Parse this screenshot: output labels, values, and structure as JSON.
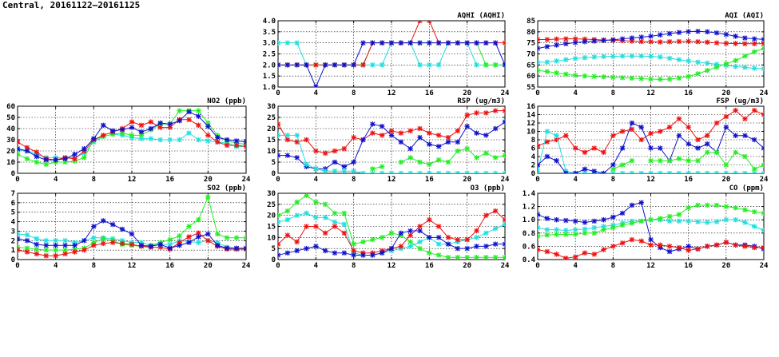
{
  "title": "Central, 20161122–20161125",
  "series_colors": {
    "red": "#ee1111",
    "blue": "#1111cc",
    "green": "#22ee22",
    "cyan": "#22dddd"
  },
  "chart_data": [
    {
      "id": "aqhi",
      "type": "line",
      "title": "AQHI (AQHI)",
      "xlim": [
        0,
        24
      ],
      "ylim": [
        1.0,
        4.0
      ],
      "xticks": [
        0,
        4,
        8,
        12,
        16,
        20,
        24
      ],
      "yticks": [
        "1.0",
        "1.5",
        "2.0",
        "2.5",
        "3.0",
        "3.5",
        "4.0"
      ],
      "grid": true,
      "series": [
        {
          "color": "cyan",
          "values": [
            3,
            3,
            3,
            2,
            2,
            2,
            2,
            2,
            2,
            2,
            2,
            2,
            3,
            3,
            3,
            2,
            2,
            2,
            3,
            3,
            3,
            2,
            2,
            2,
            2
          ]
        },
        {
          "color": "green",
          "values": [
            2,
            2,
            2,
            2,
            2,
            2,
            2,
            2,
            2,
            2,
            3,
            3,
            3,
            3,
            3,
            3,
            3,
            3,
            3,
            3,
            3,
            3,
            2,
            2,
            2
          ]
        },
        {
          "color": "red",
          "values": [
            2,
            2,
            2,
            2,
            2,
            2,
            2,
            2,
            2,
            2,
            3,
            3,
            3,
            3,
            3,
            4,
            4,
            3,
            3,
            3,
            3,
            3,
            3,
            3,
            3
          ]
        },
        {
          "color": "blue",
          "values": [
            2,
            2,
            2,
            2,
            1,
            2,
            2,
            2,
            2,
            3,
            3,
            3,
            3,
            3,
            3,
            3,
            3,
            3,
            3,
            3,
            3,
            3,
            3,
            3,
            2
          ]
        }
      ]
    },
    {
      "id": "aqi",
      "type": "line",
      "title": "AQI (AQI)",
      "xlim": [
        0,
        24
      ],
      "ylim": [
        55,
        85
      ],
      "xticks": [
        0,
        4,
        8,
        12,
        16,
        20,
        24
      ],
      "yticks": [
        "55",
        "60",
        "65",
        "70",
        "75",
        "80",
        "85"
      ],
      "grid": true,
      "series": [
        {
          "color": "red",
          "values": [
            76.5,
            76.5,
            76.7,
            76.8,
            76.8,
            76.7,
            76.5,
            76.3,
            76.2,
            76.0,
            75.8,
            75.6,
            75.5,
            75.4,
            75.5,
            75.6,
            75.7,
            75.5,
            75.3,
            75.0,
            74.8,
            74.7,
            74.6,
            74.6,
            74.6
          ]
        },
        {
          "color": "blue",
          "values": [
            72.5,
            73.3,
            74.0,
            74.6,
            75.1,
            75.5,
            75.8,
            76.1,
            76.4,
            76.8,
            77.2,
            77.6,
            78.0,
            78.6,
            79.2,
            79.7,
            80.1,
            80.2,
            80.0,
            79.5,
            78.8,
            78.0,
            77.2,
            76.8,
            76.6
          ]
        },
        {
          "color": "cyan",
          "values": [
            66.2,
            66.3,
            66.8,
            67.4,
            67.9,
            68.3,
            68.6,
            68.8,
            68.9,
            69.0,
            69.0,
            69.0,
            68.9,
            68.6,
            68.0,
            67.4,
            66.8,
            66.3,
            65.8,
            65.3,
            64.8,
            64.3,
            63.9,
            63.5,
            63.3
          ]
        },
        {
          "color": "green",
          "values": [
            62.5,
            62.0,
            61.4,
            60.8,
            60.3,
            60.0,
            59.8,
            59.6,
            59.4,
            59.2,
            59.0,
            58.8,
            58.6,
            58.5,
            58.6,
            59.0,
            59.8,
            61.0,
            62.5,
            64.0,
            65.5,
            67.0,
            69.0,
            71.0,
            72.5
          ]
        }
      ]
    },
    {
      "id": "no2",
      "type": "line",
      "title": "NO2 (ppb)",
      "xlim": [
        0,
        24
      ],
      "ylim": [
        0,
        60
      ],
      "xticks": [
        0,
        4,
        8,
        12,
        16,
        20,
        24
      ],
      "yticks": [
        "0",
        "10",
        "20",
        "30",
        "40",
        "50",
        "60"
      ],
      "grid": true,
      "series": [
        {
          "color": "cyan",
          "values": [
            21,
            20,
            17,
            14,
            14,
            14,
            14,
            18,
            28,
            33,
            35,
            34,
            32,
            31,
            31,
            30,
            30,
            30,
            36,
            30,
            29,
            28,
            27,
            24,
            24
          ]
        },
        {
          "color": "green",
          "values": [
            17,
            13,
            10,
            8,
            10,
            10,
            11,
            14,
            30,
            33,
            35,
            36,
            34,
            34,
            39,
            44,
            44,
            56,
            56,
            56,
            45,
            34,
            29,
            27,
            26
          ]
        },
        {
          "color": "red",
          "values": [
            28,
            23,
            19,
            13,
            12,
            14,
            13,
            20,
            30,
            34,
            37,
            40,
            46,
            43,
            46,
            41,
            41,
            48,
            48,
            43,
            34,
            28,
            25,
            25,
            24
          ]
        },
        {
          "color": "blue",
          "values": [
            22,
            20,
            15,
            12,
            12,
            13,
            17,
            22,
            31,
            43,
            38,
            39,
            41,
            37,
            40,
            45,
            44,
            47,
            55,
            51,
            42,
            32,
            30,
            29,
            28
          ]
        }
      ]
    },
    {
      "id": "rsp",
      "type": "line",
      "title": "RSP (ug/m3)",
      "xlim": [
        0,
        24
      ],
      "ylim": [
        0,
        30
      ],
      "xticks": [
        0,
        4,
        8,
        12,
        16,
        20,
        24
      ],
      "yticks": [
        "0",
        "5",
        "10",
        "15",
        "20",
        "25",
        "30"
      ],
      "grid": true,
      "series": [
        {
          "color": "red",
          "values": [
            22,
            15,
            14,
            15,
            10,
            9,
            10,
            11,
            16,
            15,
            18,
            17,
            19,
            18,
            19,
            20,
            18,
            17,
            16,
            19,
            26,
            27,
            27,
            28,
            28
          ]
        },
        {
          "color": "blue",
          "values": [
            8,
            8,
            7,
            3,
            2,
            2,
            5,
            3,
            5,
            15,
            22,
            21,
            17,
            14,
            11,
            16,
            13,
            12,
            14,
            14,
            21,
            18,
            17,
            20,
            23
          ]
        },
        {
          "color": "cyan",
          "values": [
            17,
            17,
            17,
            4,
            2,
            1,
            1,
            1,
            1,
            0,
            0,
            0,
            0,
            0,
            0,
            0,
            0,
            0,
            0,
            0,
            0,
            0,
            0,
            0,
            0
          ]
        },
        {
          "color": "green",
          "values": [
            null,
            null,
            null,
            null,
            null,
            null,
            null,
            null,
            null,
            null,
            2,
            3,
            null,
            5,
            7,
            5,
            4,
            6,
            5,
            10,
            11,
            7,
            9,
            7,
            8
          ]
        }
      ]
    },
    {
      "id": "fsp",
      "type": "line",
      "title": "FSP (ug/m3)",
      "xlim": [
        0,
        24
      ],
      "ylim": [
        0,
        16
      ],
      "xticks": [
        0,
        4,
        8,
        12,
        16,
        20,
        24
      ],
      "yticks": [
        "0",
        "2",
        "4",
        "6",
        "8",
        "10",
        "12",
        "14",
        "16"
      ],
      "grid": true,
      "series": [
        {
          "color": "red",
          "values": [
            6.5,
            7.5,
            8,
            9,
            6,
            5,
            6,
            5,
            9,
            10,
            10.5,
            8,
            9.5,
            10,
            11,
            13,
            11,
            8,
            9,
            12,
            13.5,
            15,
            13,
            15,
            14
          ]
        },
        {
          "color": "cyan",
          "values": [
            0.5,
            10,
            9,
            0.5,
            0,
            0,
            0,
            0,
            0,
            0,
            0,
            0,
            0,
            0,
            0,
            0,
            0,
            0,
            0,
            0,
            0,
            0,
            0,
            0,
            0
          ]
        },
        {
          "color": "blue",
          "values": [
            2,
            4,
            3,
            0,
            0,
            1,
            0.5,
            0,
            2,
            6,
            12,
            11,
            6,
            6,
            3,
            9,
            7,
            6,
            7,
            5,
            11,
            9,
            9,
            8,
            6
          ]
        },
        {
          "color": "green",
          "values": [
            null,
            null,
            null,
            null,
            null,
            null,
            null,
            null,
            1,
            2,
            3,
            null,
            3,
            3,
            3,
            3.5,
            3,
            3,
            5,
            5,
            2,
            5,
            4,
            1,
            2
          ]
        }
      ]
    },
    {
      "id": "so2",
      "type": "line",
      "title": "SO2 (ppb)",
      "xlim": [
        0,
        24
      ],
      "ylim": [
        0,
        7
      ],
      "xticks": [
        0,
        4,
        8,
        12,
        16,
        20,
        24
      ],
      "yticks": [
        "0",
        "1",
        "2",
        "3",
        "4",
        "5",
        "6",
        "7"
      ],
      "grid": true,
      "series": [
        {
          "color": "cyan",
          "values": [
            2.7,
            2.6,
            2.2,
            2.0,
            2.0,
            2.0,
            1.8,
            2.0,
            2.3,
            2.3,
            2.2,
            2.0,
            1.8,
            1.8,
            1.5,
            1.6,
            1.6,
            2.0,
            1.9,
            1.8,
            2.0,
            1.8,
            1.3,
            1.2,
            1.1
          ]
        },
        {
          "color": "green",
          "values": [
            1.3,
            1.2,
            1.1,
            1.0,
            1.0,
            1.0,
            1.1,
            1.2,
            1.8,
            2.2,
            2.0,
            1.6,
            1.5,
            1.4,
            1.5,
            1.8,
            2.1,
            2.5,
            3.5,
            4.2,
            6.6,
            2.7,
            2.3,
            2.3,
            2.3
          ]
        },
        {
          "color": "red",
          "values": [
            1.0,
            0.8,
            0.6,
            0.4,
            0.4,
            0.6,
            0.8,
            1.0,
            1.5,
            1.7,
            1.8,
            1.7,
            1.6,
            1.4,
            1.3,
            1.3,
            1.1,
            1.8,
            2.4,
            2.8,
            2.0,
            1.4,
            1.1,
            1.1,
            1.1
          ]
        },
        {
          "color": "blue",
          "values": [
            2.2,
            2.0,
            1.6,
            1.5,
            1.5,
            1.5,
            1.5,
            2.0,
            3.5,
            4.1,
            3.7,
            3.2,
            2.7,
            1.5,
            1.4,
            1.6,
            1.2,
            1.5,
            1.8,
            2.4,
            2.7,
            1.5,
            1.2,
            1.2,
            1.2
          ]
        }
      ]
    },
    {
      "id": "o3",
      "type": "line",
      "title": "O3 (ppb)",
      "xlim": [
        0,
        24
      ],
      "ylim": [
        0,
        30
      ],
      "xticks": [
        0,
        4,
        8,
        12,
        16,
        20,
        24
      ],
      "yticks": [
        "0",
        "5",
        "10",
        "15",
        "20",
        "25",
        "30"
      ],
      "grid": true,
      "series": [
        {
          "color": "green",
          "values": [
            20,
            22,
            26,
            29,
            26,
            25,
            21,
            21,
            7,
            8,
            9,
            10,
            12,
            11,
            8,
            5,
            3,
            2,
            1,
            1,
            1,
            1,
            1,
            1,
            1
          ]
        },
        {
          "color": "cyan",
          "values": [
            17,
            18,
            20,
            21,
            19,
            19,
            17,
            16,
            3,
            2,
            2,
            3,
            4,
            5,
            6,
            8,
            10,
            7,
            7,
            8,
            9,
            10,
            12,
            14,
            16
          ]
        },
        {
          "color": "red",
          "values": [
            7,
            11,
            8,
            15,
            15,
            12,
            15,
            12,
            4,
            3,
            3,
            4,
            5,
            6,
            11,
            15,
            18,
            15,
            10,
            9,
            9,
            13,
            20,
            22,
            18
          ]
        },
        {
          "color": "blue",
          "values": [
            2,
            3,
            4,
            5,
            6,
            4,
            3,
            3,
            2,
            2,
            2,
            3,
            5,
            12,
            13,
            13,
            10,
            10,
            7,
            5,
            5,
            6,
            6,
            7,
            7
          ]
        }
      ]
    },
    {
      "id": "co",
      "type": "line",
      "title": "CO (ppm)",
      "xlim": [
        0,
        24
      ],
      "ylim": [
        0.4,
        1.4
      ],
      "xticks": [
        0,
        4,
        8,
        12,
        16,
        20,
        24
      ],
      "yticks": [
        "0.4",
        "0.6",
        "0.8",
        "1.0",
        "1.2",
        "1.4"
      ],
      "grid": true,
      "series": [
        {
          "color": "blue",
          "values": [
            1.08,
            1.02,
            1.0,
            0.99,
            0.98,
            0.96,
            0.98,
            1.0,
            1.04,
            1.1,
            1.22,
            1.26,
            0.7,
            0.58,
            0.52,
            0.56,
            0.6,
            0.56,
            0.6,
            0.62,
            0.66,
            0.62,
            0.62,
            0.6,
            0.56
          ]
        },
        {
          "color": "cyan",
          "values": [
            0.88,
            0.85,
            0.85,
            0.84,
            0.85,
            0.86,
            0.88,
            0.9,
            0.92,
            0.95,
            0.98,
            0.98,
            1.0,
            1.0,
            0.98,
            0.98,
            0.98,
            0.97,
            0.96,
            0.97,
            1.0,
            1.0,
            0.96,
            0.9,
            0.84
          ]
        },
        {
          "color": "green",
          "values": [
            0.75,
            0.77,
            0.78,
            0.78,
            0.78,
            0.8,
            0.8,
            0.85,
            0.88,
            0.92,
            0.95,
            0.98,
            1.0,
            1.02,
            1.05,
            1.08,
            1.18,
            1.22,
            1.22,
            1.22,
            1.2,
            1.18,
            1.15,
            1.12,
            1.1
          ]
        },
        {
          "color": "red",
          "values": [
            0.55,
            0.52,
            0.48,
            0.42,
            0.44,
            0.5,
            0.48,
            0.55,
            0.6,
            0.65,
            0.7,
            0.68,
            0.62,
            0.62,
            0.6,
            0.58,
            0.54,
            0.56,
            0.6,
            0.62,
            0.66,
            0.62,
            0.6,
            0.58,
            0.58
          ]
        }
      ]
    }
  ]
}
